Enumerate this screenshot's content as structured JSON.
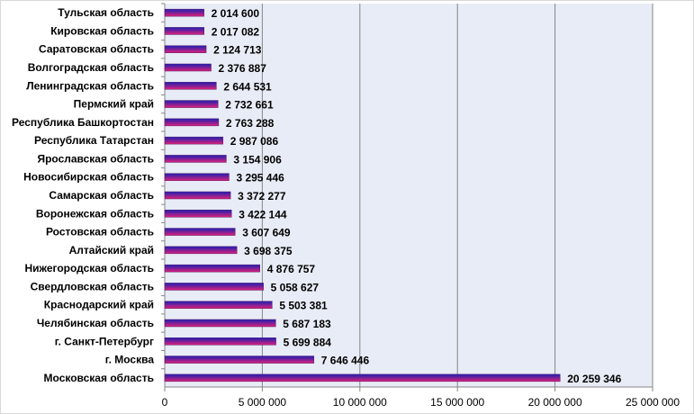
{
  "chart_data": {
    "type": "bar",
    "orientation": "horizontal",
    "categories": [
      "Тульская область",
      "Кировская область",
      "Саратовская область",
      "Волгоградская область",
      "Ленинградская область",
      "Пермский край",
      "Республика Башкортостан",
      "Республика Татарстан",
      "Ярославская область",
      "Новосибирская область",
      "Самарская область",
      "Воронежская область",
      "Ростовская область",
      "Алтайский край",
      "Нижегородская область",
      "Свердловская область",
      "Краснодарский край",
      "Челябинская область",
      "г. Санкт-Петербург",
      "г. Москва",
      "Московская область"
    ],
    "values": [
      2014600,
      2017082,
      2124713,
      2376887,
      2644531,
      2732661,
      2763288,
      2987086,
      3154906,
      3295446,
      3372277,
      3422144,
      3607649,
      3698375,
      4876757,
      5058627,
      5503381,
      5687183,
      5699884,
      7646446,
      20259346
    ],
    "data_labels": [
      "2 014 600",
      "2 017 082",
      "2 124 713",
      "2 376 887",
      "2 644 531",
      "2 732 661",
      "2 763 288",
      "2 987 086",
      "3 154 906",
      "3 295 446",
      "3 372 277",
      "3 422 144",
      "3 607 649",
      "3 698 375",
      "4 876 757",
      "5 058 627",
      "5 503 381",
      "5 687 183",
      "5 699 884",
      "7 646 446",
      "20 259 346"
    ],
    "x_ticks": [
      0,
      5000000,
      10000000,
      15000000,
      20000000,
      25000000
    ],
    "x_tick_labels": [
      "0",
      "5 000 000",
      "10 000 000",
      "15 000 000",
      "20 000 000",
      "25 000 000"
    ],
    "xlim": [
      0,
      25000000
    ],
    "title": "",
    "xlabel": "",
    "ylabel": "",
    "grid": "vertical major gridlines",
    "legend": "none",
    "colors": {
      "plot_background": "#e8ecf6",
      "gridline": "#868686",
      "bar_top": "#1f1fb0",
      "bar_bottom": "#e0207a",
      "bar_border": "#5a1a6a"
    }
  }
}
